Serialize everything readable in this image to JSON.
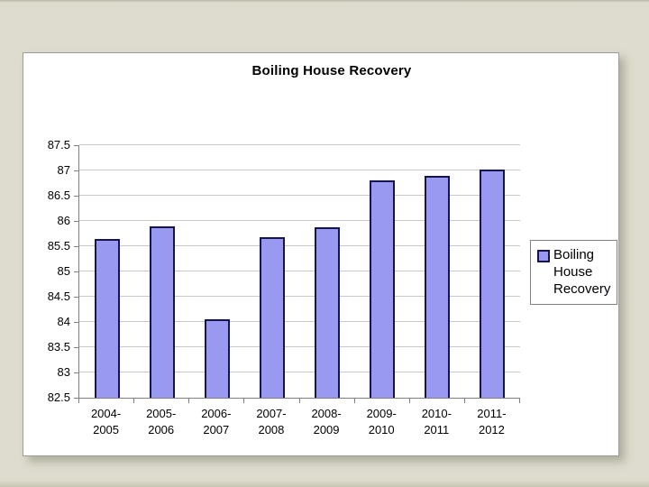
{
  "slide": {
    "background_color": "#DEDCCE",
    "card_border_color": "#9C9C94"
  },
  "chart_data": {
    "type": "bar",
    "title": "Boiling House Recovery",
    "categories": [
      "2004-2005",
      "2005-2006",
      "2006-2007",
      "2007-2008",
      "2008-2009",
      "2009-2010",
      "2010-2011",
      "2011-2012"
    ],
    "values": [
      85.65,
      85.9,
      84.05,
      85.68,
      85.88,
      86.8,
      86.9,
      87.02
    ],
    "xlabel": "",
    "ylabel": "",
    "ylim": [
      82.5,
      87.5
    ],
    "ytick_step": 0.5,
    "ytick_labels": [
      "82.5",
      "83",
      "83.5",
      "84",
      "84.5",
      "85",
      "85.5",
      "86",
      "86.5",
      "87",
      "87.5"
    ],
    "grid": "horizontal",
    "legend": {
      "label": "Boiling House Recovery",
      "position": "right"
    },
    "colors": {
      "bar_fill": "#9999F2",
      "bar_border": "#14144E",
      "gridline": "#C8C8C8",
      "axis": "#7F7F7F",
      "text": "#000000"
    }
  }
}
